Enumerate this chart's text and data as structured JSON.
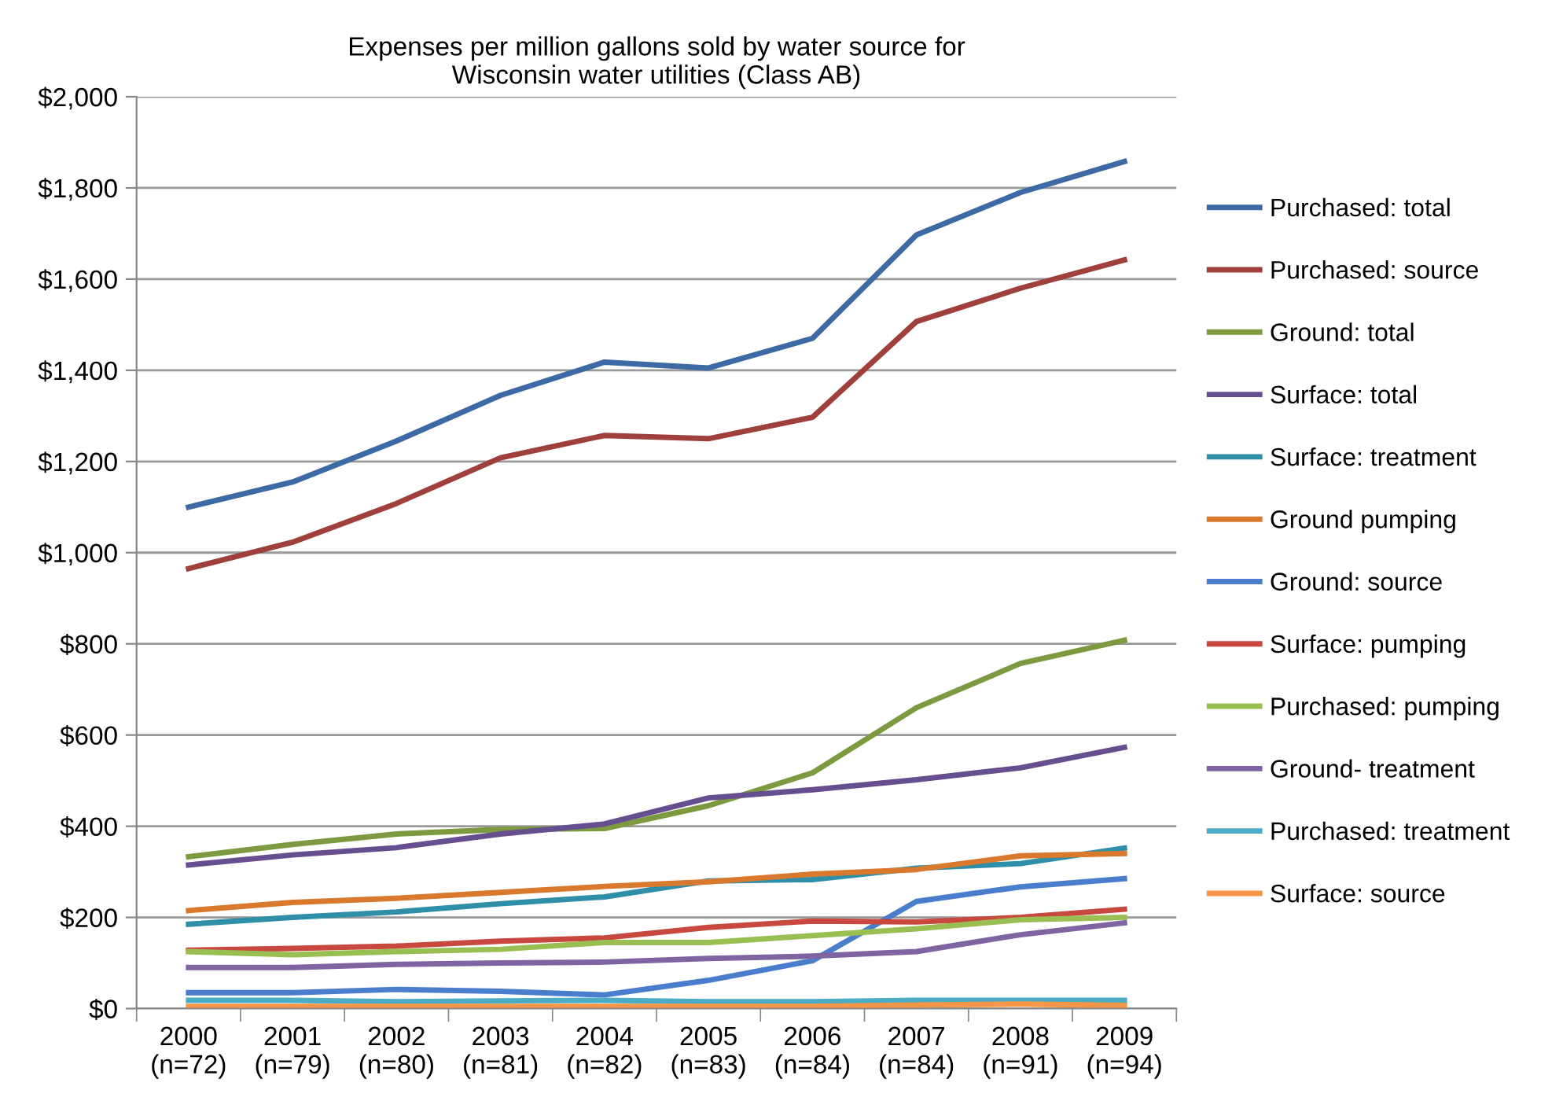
{
  "chart_data": {
    "type": "line",
    "title": "Expenses per million gallons sold by water source for\nWisconsin water utilities (Class AB)",
    "categories": [
      "2000\n(n=72)",
      "2001\n(n=79)",
      "2002\n(n=80)",
      "2003\n(n=81)",
      "2004\n(n=82)",
      "2005\n(n=83)",
      "2006\n(n=84)",
      "2007\n(n=84)",
      "2008\n(n=91)",
      "2009\n(n=94)"
    ],
    "series": [
      {
        "name": "Purchased: total",
        "color": "#3d6aa4",
        "values": [
          1100,
          1155,
          1245,
          1345,
          1418,
          1405,
          1470,
          1697,
          1790,
          1858
        ]
      },
      {
        "name": "Purchased: source",
        "color": "#a0403c",
        "values": [
          965,
          1023,
          1108,
          1208,
          1257,
          1250,
          1297,
          1507,
          1580,
          1642
        ]
      },
      {
        "name": "Ground: total",
        "color": "#7c9b40",
        "values": [
          333,
          360,
          383,
          393,
          395,
          445,
          517,
          660,
          757,
          808
        ]
      },
      {
        "name": "Surface: total",
        "color": "#674e8e",
        "values": [
          315,
          337,
          353,
          383,
          405,
          462,
          480,
          502,
          528,
          573
        ]
      },
      {
        "name": "Surface: treatment",
        "color": "#2f8fa8",
        "values": [
          185,
          200,
          212,
          230,
          245,
          280,
          283,
          308,
          318,
          352
        ]
      },
      {
        "name": "Ground pumping",
        "color": "#d8792e",
        "values": [
          215,
          233,
          242,
          255,
          268,
          278,
          295,
          305,
          335,
          340
        ]
      },
      {
        "name": "Ground: source",
        "color": "#4a7ecc",
        "values": [
          35,
          35,
          42,
          38,
          30,
          62,
          105,
          235,
          267,
          285
        ]
      },
      {
        "name": "Surface: pumping",
        "color": "#c8483f",
        "values": [
          128,
          132,
          137,
          148,
          155,
          178,
          192,
          190,
          200,
          218
        ]
      },
      {
        "name": "Purchased: pumping",
        "color": "#99bf52",
        "values": [
          125,
          118,
          125,
          130,
          145,
          145,
          160,
          175,
          195,
          200
        ]
      },
      {
        "name": "Ground- treatment",
        "color": "#8064a2",
        "values": [
          90,
          90,
          97,
          100,
          102,
          110,
          115,
          125,
          162,
          188
        ]
      },
      {
        "name": "Purchased: treatment",
        "color": "#4bacc6",
        "values": [
          18,
          18,
          15,
          17,
          18,
          15,
          15,
          18,
          18,
          18
        ]
      },
      {
        "name": "Surface: source",
        "color": "#f79646",
        "values": [
          5,
          5,
          5,
          5,
          5,
          5,
          5,
          8,
          10,
          7
        ]
      }
    ],
    "ylim": [
      0,
      2000
    ],
    "yticks": [
      {
        "value": 0,
        "label": "$0"
      },
      {
        "value": 200,
        "label": "$200"
      },
      {
        "value": 400,
        "label": "$400"
      },
      {
        "value": 600,
        "label": "$600"
      },
      {
        "value": 800,
        "label": "$800"
      },
      {
        "value": 1000,
        "label": "$1,000"
      },
      {
        "value": 1200,
        "label": "$1,200"
      },
      {
        "value": 1400,
        "label": "$1,400"
      },
      {
        "value": 1600,
        "label": "$1,600"
      },
      {
        "value": 1800,
        "label": "$1,800"
      },
      {
        "value": 2000,
        "label": "$2,000"
      }
    ],
    "grid": "y",
    "legend": "right",
    "marker": "none",
    "line_style": "solid"
  }
}
